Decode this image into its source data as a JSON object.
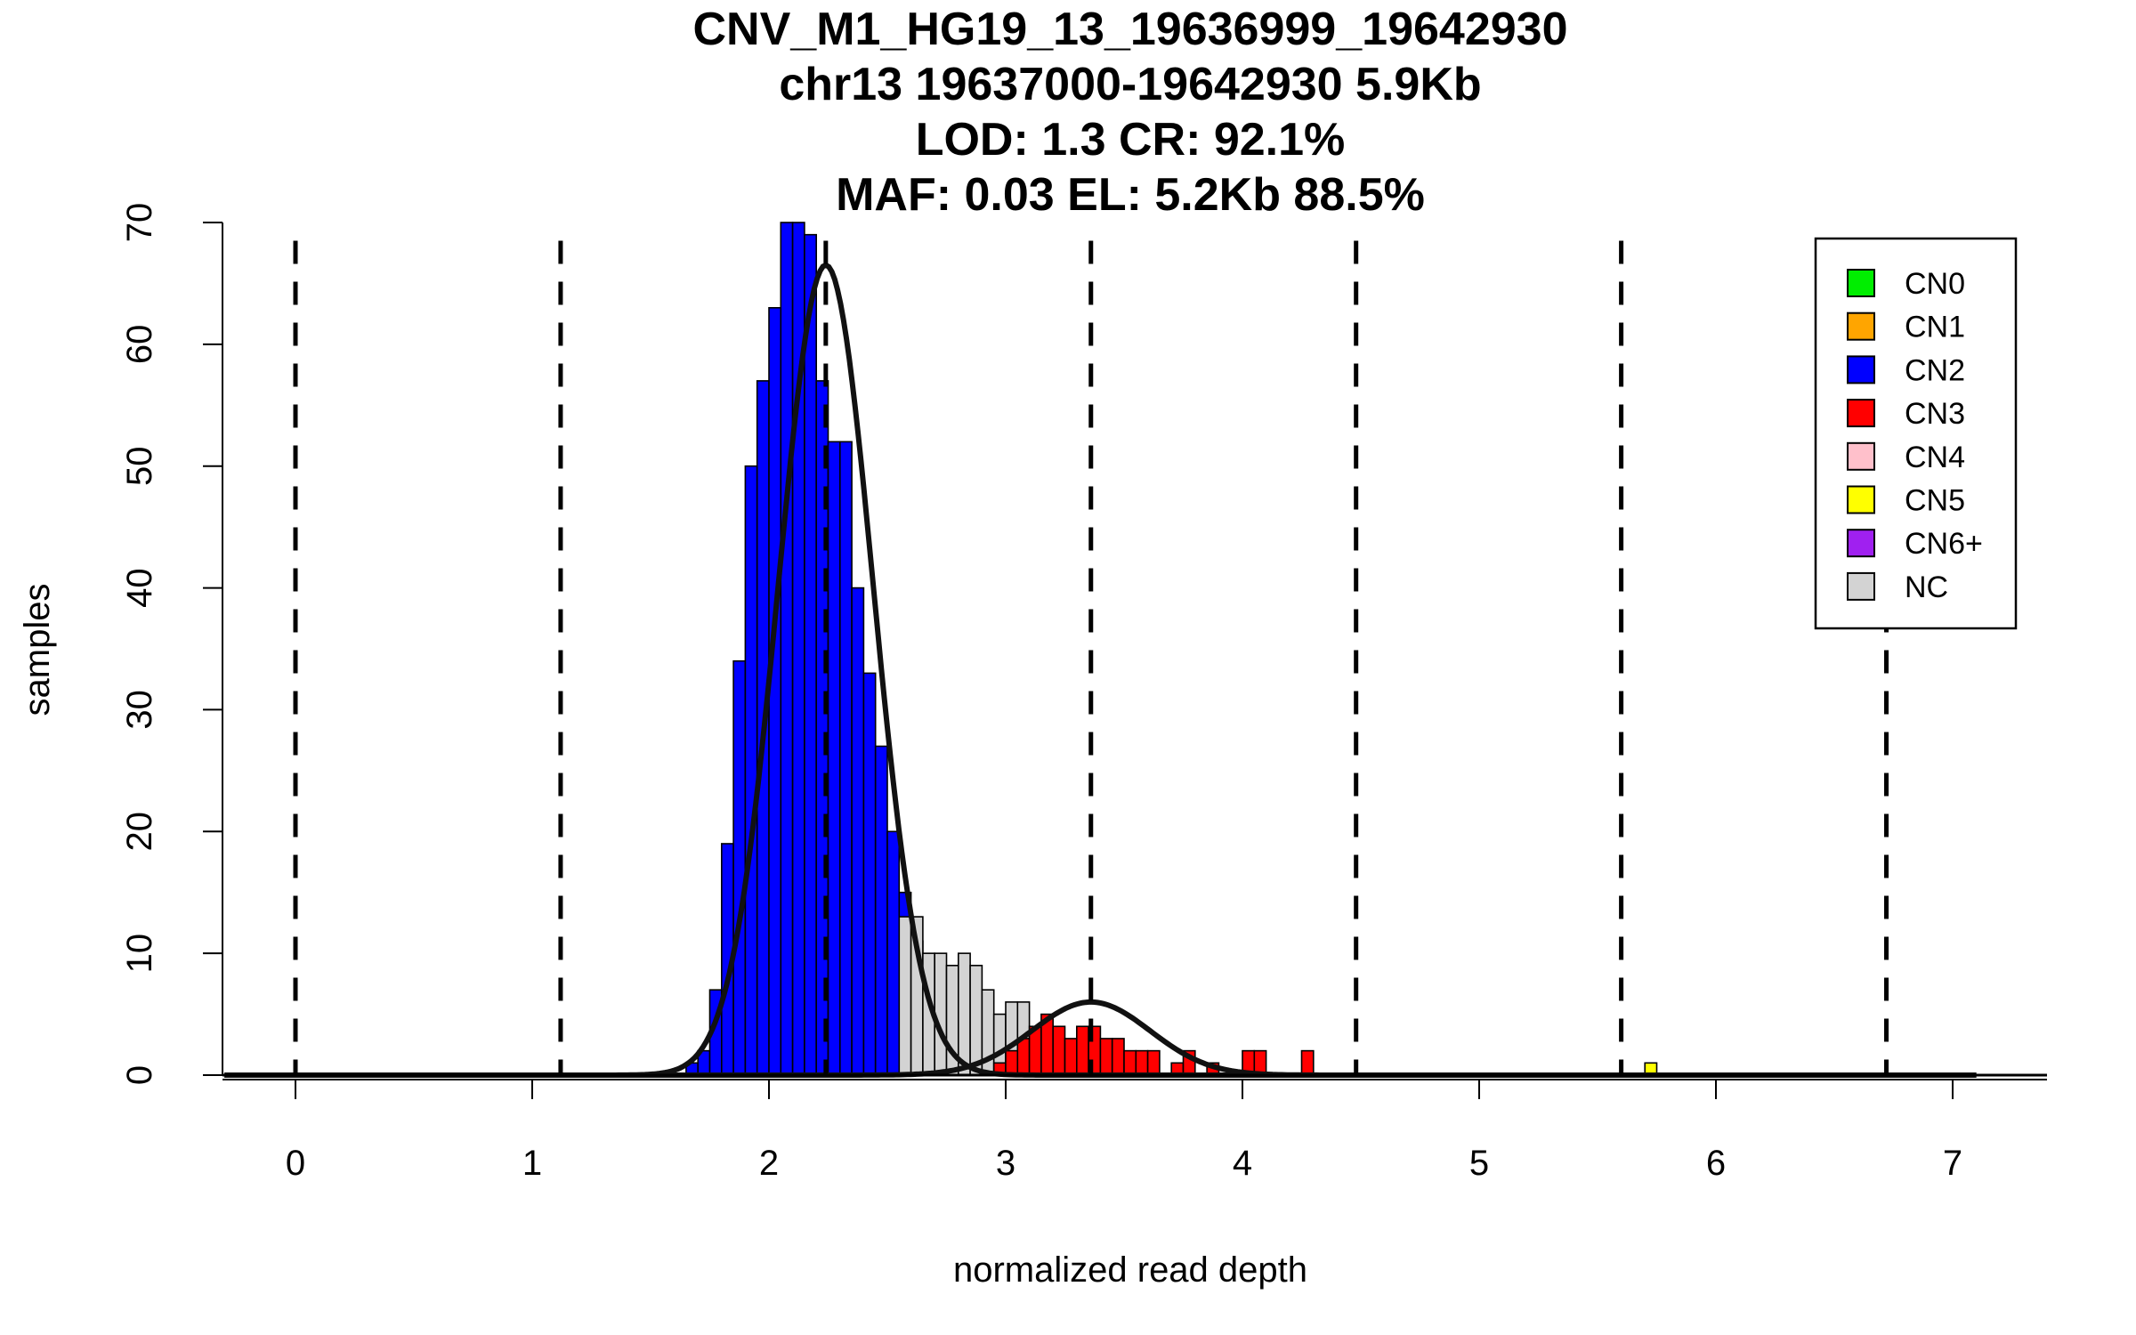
{
  "chart_data": {
    "type": "bar",
    "title_lines": [
      "CNV_M1_HG19_13_19636999_19642930",
      "chr13 19637000-19642930 5.9Kb",
      "LOD: 1.3 CR: 92.1%",
      "MAF: 0.03 EL: 5.2Kb 88.5%"
    ],
    "xlabel": "normalized read depth",
    "ylabel": "samples",
    "xlim": [
      -0.3,
      7.4
    ],
    "ylim": [
      0,
      70
    ],
    "x_ticks": [
      0,
      1,
      2,
      3,
      4,
      5,
      6,
      7
    ],
    "y_ticks": [
      0,
      10,
      20,
      30,
      40,
      50,
      60,
      70
    ],
    "grid": false,
    "legend_position": "top-right",
    "legend": [
      {
        "label": "CN0",
        "color": "#00ee00"
      },
      {
        "label": "CN1",
        "color": "#ffa500"
      },
      {
        "label": "CN2",
        "color": "#0000ff"
      },
      {
        "label": "CN3",
        "color": "#ff0000"
      },
      {
        "label": "CN4",
        "color": "#ffc0cb"
      },
      {
        "label": "CN5",
        "color": "#ffff00"
      },
      {
        "label": "CN6+",
        "color": "#a020f0"
      },
      {
        "label": "NC",
        "color": "#d3d3d3"
      }
    ],
    "bin_width": 0.05,
    "series": [
      {
        "name": "CN2",
        "color": "#0000ff",
        "bins": [
          {
            "x": 1.65,
            "y": 1
          },
          {
            "x": 1.7,
            "y": 2
          },
          {
            "x": 1.75,
            "y": 7
          },
          {
            "x": 1.8,
            "y": 19
          },
          {
            "x": 1.85,
            "y": 34
          },
          {
            "x": 1.9,
            "y": 50
          },
          {
            "x": 1.95,
            "y": 57
          },
          {
            "x": 2.0,
            "y": 63
          },
          {
            "x": 2.05,
            "y": 70
          },
          {
            "x": 2.1,
            "y": 70
          },
          {
            "x": 2.15,
            "y": 69
          },
          {
            "x": 2.2,
            "y": 57
          },
          {
            "x": 2.25,
            "y": 52
          },
          {
            "x": 2.3,
            "y": 52
          },
          {
            "x": 2.35,
            "y": 40
          },
          {
            "x": 2.4,
            "y": 33
          },
          {
            "x": 2.45,
            "y": 27
          },
          {
            "x": 2.5,
            "y": 20
          },
          {
            "x": 2.55,
            "y": 15
          },
          {
            "x": 2.6,
            "y": 11
          },
          {
            "x": 2.65,
            "y": 5
          },
          {
            "x": 2.7,
            "y": 3
          }
        ]
      },
      {
        "name": "NC",
        "color": "#d3d3d3",
        "bins": [
          {
            "x": 2.55,
            "y": 13
          },
          {
            "x": 2.6,
            "y": 13
          },
          {
            "x": 2.65,
            "y": 10
          },
          {
            "x": 2.7,
            "y": 10
          },
          {
            "x": 2.75,
            "y": 9
          },
          {
            "x": 2.8,
            "y": 10
          },
          {
            "x": 2.85,
            "y": 9
          },
          {
            "x": 2.9,
            "y": 7
          },
          {
            "x": 2.95,
            "y": 5
          },
          {
            "x": 3.0,
            "y": 6
          },
          {
            "x": 3.05,
            "y": 6
          },
          {
            "x": 3.1,
            "y": 3
          }
        ]
      },
      {
        "name": "CN3",
        "color": "#ff0000",
        "bins": [
          {
            "x": 2.95,
            "y": 1
          },
          {
            "x": 3.0,
            "y": 2
          },
          {
            "x": 3.05,
            "y": 3
          },
          {
            "x": 3.1,
            "y": 4
          },
          {
            "x": 3.15,
            "y": 5
          },
          {
            "x": 3.2,
            "y": 4
          },
          {
            "x": 3.25,
            "y": 3
          },
          {
            "x": 3.3,
            "y": 4
          },
          {
            "x": 3.35,
            "y": 4
          },
          {
            "x": 3.4,
            "y": 3
          },
          {
            "x": 3.45,
            "y": 3
          },
          {
            "x": 3.5,
            "y": 2
          },
          {
            "x": 3.55,
            "y": 2
          },
          {
            "x": 3.6,
            "y": 2
          },
          {
            "x": 3.7,
            "y": 1
          },
          {
            "x": 3.75,
            "y": 2
          },
          {
            "x": 3.85,
            "y": 1
          },
          {
            "x": 4.0,
            "y": 2
          },
          {
            "x": 4.05,
            "y": 2
          },
          {
            "x": 4.25,
            "y": 2
          }
        ]
      },
      {
        "name": "CN5",
        "color": "#ffff00",
        "bins": [
          {
            "x": 5.7,
            "y": 1
          }
        ]
      }
    ],
    "fit_curves": [
      {
        "mean": 2.24,
        "sd": 0.2,
        "peak": 66.5
      },
      {
        "mean": 3.36,
        "sd": 0.25,
        "peak": 6
      }
    ],
    "dashed_lines": [
      0.0,
      1.12,
      2.24,
      3.36,
      4.48,
      5.6,
      6.72
    ]
  }
}
